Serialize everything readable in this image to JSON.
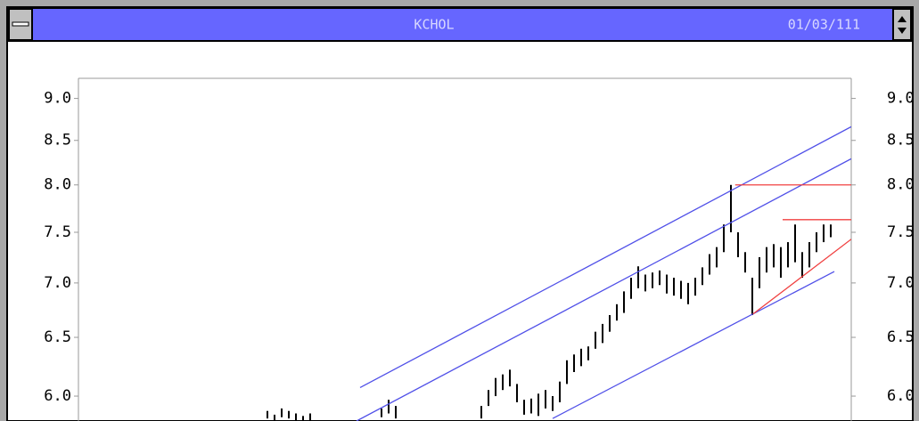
{
  "chart_data": {
    "type": "hilo",
    "title": "KCHOL",
    "subtitle": "01/03/111",
    "yscale": "log",
    "ylim": [
      5.8,
      9.25
    ],
    "yticks": [
      {
        "value": 6,
        "label": "6.0"
      },
      {
        "value": 6.5,
        "label": "6.5"
      },
      {
        "value": 7,
        "label": "7.0"
      },
      {
        "value": 7.5,
        "label": "7.5"
      },
      {
        "value": 8,
        "label": "8.0"
      },
      {
        "value": 8.5,
        "label": "8.5"
      },
      {
        "value": 9,
        "label": "9.0"
      }
    ],
    "series": [
      {
        "color": "#000000",
        "low": [
          5.82,
          5.8,
          5.83,
          5.82,
          5.8,
          5.8,
          5.8,
          null,
          null,
          null,
          null,
          null,
          null,
          null,
          null,
          null,
          5.83,
          5.86,
          5.82,
          null,
          null,
          null,
          null,
          null,
          null,
          null,
          null,
          null,
          null,
          null,
          5.82,
          5.92,
          6.0,
          6.05,
          6.08,
          5.95,
          5.85,
          5.86,
          5.84,
          5.9,
          5.88,
          5.95,
          6.1,
          6.2,
          6.25,
          6.3,
          6.4,
          6.45,
          6.55,
          6.65,
          6.72,
          6.85,
          6.95,
          6.92,
          6.95,
          6.98,
          6.9,
          6.88,
          6.85,
          6.8,
          6.88,
          6.98,
          7.08,
          7.15,
          7.3,
          7.5,
          7.25,
          7.1,
          6.7,
          6.95,
          7.1,
          7.15,
          7.05,
          7.15,
          7.2,
          7.05,
          7.15,
          7.3,
          7.4,
          7.45
        ],
        "high": [
          5.88,
          5.85,
          5.9,
          5.88,
          5.86,
          5.84,
          5.86,
          null,
          null,
          null,
          null,
          null,
          null,
          null,
          null,
          null,
          5.9,
          5.97,
          5.92,
          null,
          null,
          null,
          null,
          null,
          null,
          null,
          null,
          null,
          null,
          null,
          5.92,
          6.05,
          6.15,
          6.18,
          6.22,
          6.1,
          5.97,
          5.98,
          6.02,
          6.05,
          6.0,
          6.12,
          6.3,
          6.35,
          6.4,
          6.42,
          6.55,
          6.62,
          6.7,
          6.8,
          6.92,
          7.05,
          7.16,
          7.08,
          7.1,
          7.12,
          7.08,
          7.05,
          7.02,
          7.0,
          7.05,
          7.15,
          7.28,
          7.35,
          7.58,
          8.0,
          7.5,
          7.3,
          7.05,
          7.25,
          7.35,
          7.38,
          7.35,
          7.4,
          7.58,
          7.3,
          7.4,
          7.5,
          7.58,
          7.58
        ]
      }
    ],
    "lines": [
      {
        "color": "#5050e8",
        "from": [
          13,
          6.07
        ],
        "to": [
          81.875,
          8.66
        ]
      },
      {
        "color": "#5050e8",
        "from": [
          12.5,
          5.8
        ],
        "to": [
          81.875,
          8.29
        ]
      },
      {
        "color": "#5050e8",
        "from": [
          40,
          5.82
        ],
        "to": [
          79.5,
          7.11
        ]
      },
      {
        "color": "#f04040",
        "from": [
          65.6,
          8.0
        ],
        "to": [
          81.875,
          8.0
        ]
      },
      {
        "color": "#f04040",
        "from": [
          72.25,
          7.63
        ],
        "to": [
          81.875,
          7.63
        ]
      },
      {
        "color": "#f04040",
        "from": [
          68.1,
          6.71
        ],
        "to": [
          81.875,
          7.43
        ]
      }
    ]
  }
}
